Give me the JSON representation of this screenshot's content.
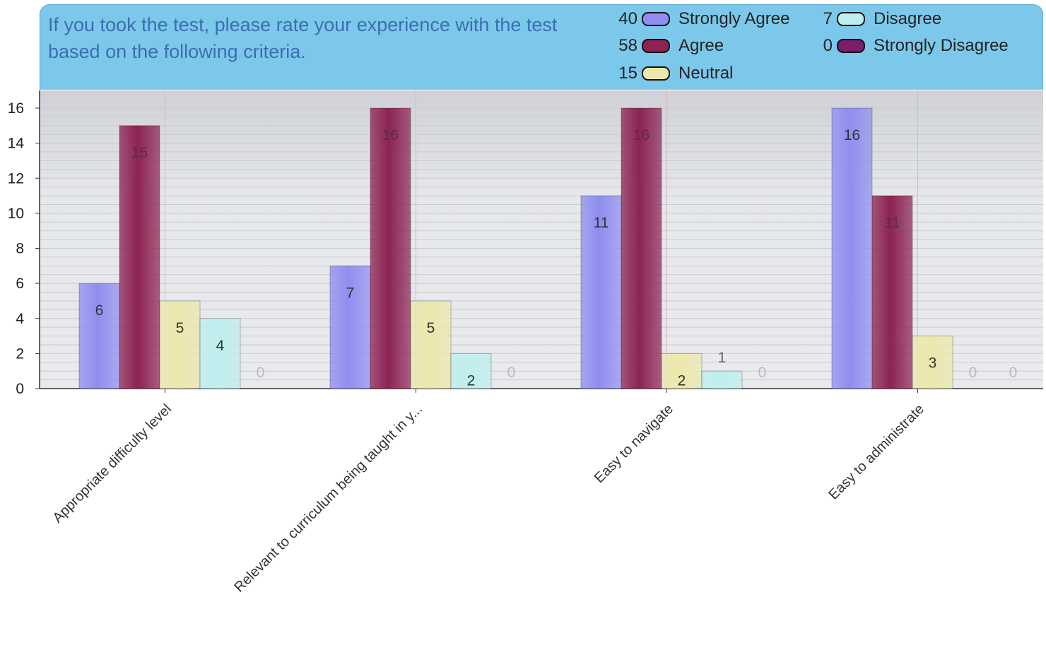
{
  "chart_data": {
    "type": "bar",
    "title": "If you took the test, please rate your experience with the test based on the following criteria.",
    "categories": [
      "Appropriate difficulty level",
      "Relevant to curriculum being taught in y...",
      "Easy to navigate",
      "Easy to administrate"
    ],
    "series": [
      {
        "name": "Strongly Agree",
        "total": 40,
        "color": "#8f8ef0",
        "values": [
          6,
          7,
          11,
          16
        ]
      },
      {
        "name": "Agree",
        "total": 58,
        "color": "#8c2353",
        "values": [
          15,
          16,
          16,
          11
        ]
      },
      {
        "name": "Neutral",
        "total": 15,
        "color": "#ece8ac",
        "values": [
          5,
          5,
          2,
          3
        ]
      },
      {
        "name": "Disagree",
        "total": 7,
        "color": "#bfeeee",
        "values": [
          4,
          2,
          1,
          0
        ]
      },
      {
        "name": "Strongly Disagree",
        "total": 0,
        "color": "#7a1d6a",
        "values": [
          0,
          0,
          0,
          0
        ]
      }
    ],
    "ylim": [
      0,
      16
    ],
    "yticks": [
      0,
      2,
      4,
      6,
      8,
      10,
      12,
      14,
      16
    ],
    "xlabel": "",
    "ylabel": "",
    "grid": true,
    "legend_position": "top-right"
  }
}
